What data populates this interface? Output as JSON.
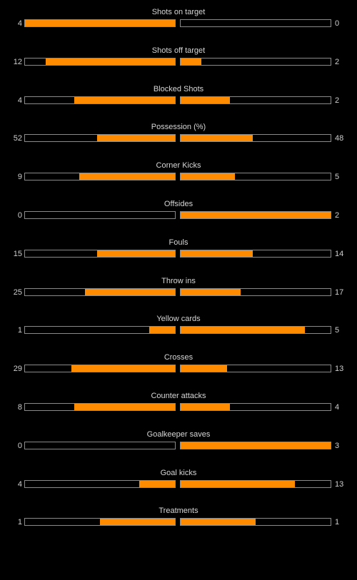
{
  "colors": {
    "background": "#000000",
    "fill": "#ff8c00",
    "bar_border": "#8a8a8a",
    "text": "#cfcfcf"
  },
  "stats": [
    {
      "label": "Shots on target",
      "home": "4",
      "away": "0",
      "home_fill": 1.0,
      "away_fill": 0.0
    },
    {
      "label": "Shots off target",
      "home": "12",
      "away": "2",
      "home_fill": 0.86,
      "away_fill": 0.14
    },
    {
      "label": "Blocked Shots",
      "home": "4",
      "away": "2",
      "home_fill": 0.67,
      "away_fill": 0.33
    },
    {
      "label": "Possession (%)",
      "home": "52",
      "away": "48",
      "home_fill": 0.52,
      "away_fill": 0.48
    },
    {
      "label": "Corner Kicks",
      "home": "9",
      "away": "5",
      "home_fill": 0.64,
      "away_fill": 0.36
    },
    {
      "label": "Offsides",
      "home": "0",
      "away": "2",
      "home_fill": 0.0,
      "away_fill": 1.0
    },
    {
      "label": "Fouls",
      "home": "15",
      "away": "14",
      "home_fill": 0.52,
      "away_fill": 0.48
    },
    {
      "label": "Throw ins",
      "home": "25",
      "away": "17",
      "home_fill": 0.6,
      "away_fill": 0.4
    },
    {
      "label": "Yellow cards",
      "home": "1",
      "away": "5",
      "home_fill": 0.17,
      "away_fill": 0.83
    },
    {
      "label": "Crosses",
      "home": "29",
      "away": "13",
      "home_fill": 0.69,
      "away_fill": 0.31
    },
    {
      "label": "Counter attacks",
      "home": "8",
      "away": "4",
      "home_fill": 0.67,
      "away_fill": 0.33
    },
    {
      "label": "Goalkeeper saves",
      "home": "0",
      "away": "3",
      "home_fill": 0.0,
      "away_fill": 1.0
    },
    {
      "label": "Goal kicks",
      "home": "4",
      "away": "13",
      "home_fill": 0.24,
      "away_fill": 0.76
    },
    {
      "label": "Treatments",
      "home": "1",
      "away": "1",
      "home_fill": 0.5,
      "away_fill": 0.5
    }
  ]
}
